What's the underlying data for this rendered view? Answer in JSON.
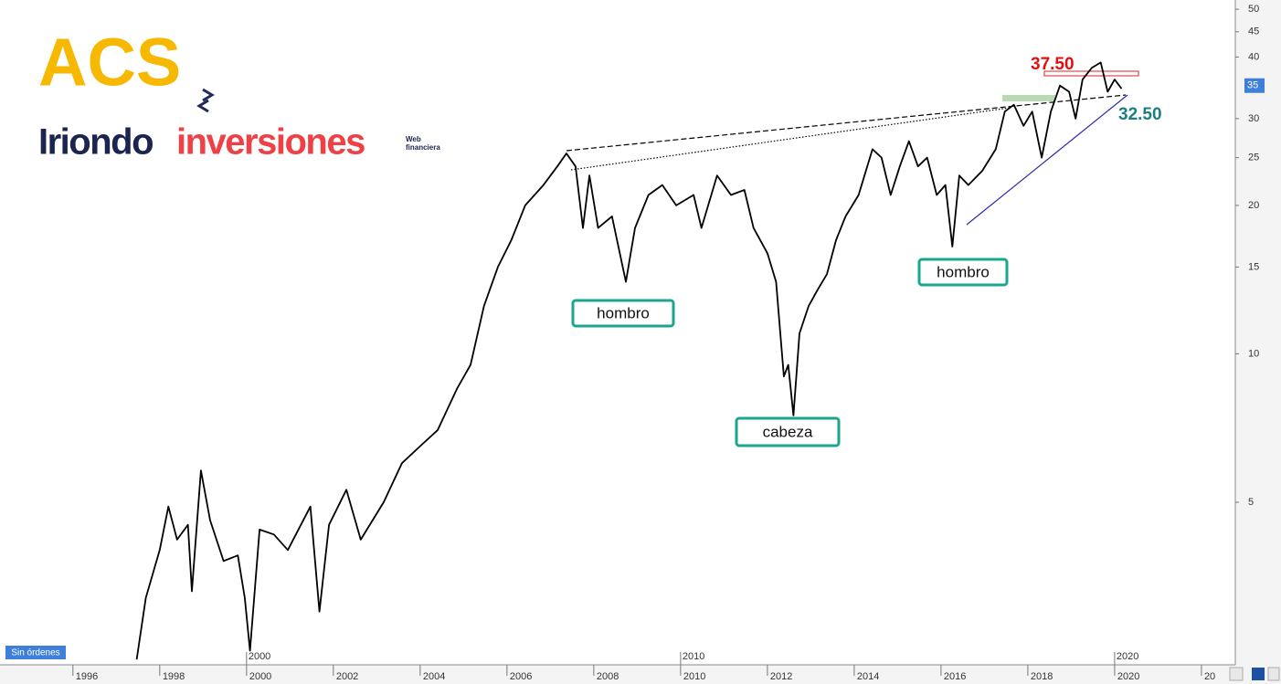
{
  "chart_data": {
    "type": "line",
    "logo": {
      "brand": "ACS",
      "name_a": "Iriondo",
      "name_b": "inversiones",
      "tag_a": "Web",
      "tag_b": "financiera"
    },
    "status": "Sin órdenes",
    "log_y": true,
    "xlim": [
      1994.32,
      2022.78
    ],
    "ylim": [
      2.34,
      52.2
    ],
    "xticks": [
      1996,
      1998,
      2000,
      2002,
      2004,
      2006,
      2008,
      2010,
      2012,
      2014,
      2016,
      2018,
      2020,
      {
        "value": 2022,
        "label": "20"
      }
    ],
    "major_xticks": [
      2000,
      2010,
      2020
    ],
    "yticks": [
      5,
      10,
      15,
      20,
      25,
      30,
      40,
      45,
      50
    ],
    "last_price": 35,
    "series": [
      {
        "name": "ACS",
        "color": "#000000",
        "x": [
          1997.47,
          1997.68,
          1998.0,
          1998.2,
          1998.4,
          1998.65,
          1998.74,
          1998.95,
          1999.16,
          1999.47,
          1999.8,
          1999.96,
          2000.08,
          2000.3,
          2000.63,
          2000.95,
          2001.47,
          2001.68,
          2001.9,
          2002.3,
          2002.63,
          2003.16,
          2003.58,
          2004.0,
          2004.4,
          2004.85,
          2005.16,
          2005.47,
          2005.79,
          2006.1,
          2006.42,
          2006.84,
          2007.16,
          2007.37,
          2007.58,
          2007.75,
          2007.9,
          2008.1,
          2008.42,
          2008.74,
          2008.95,
          2009.26,
          2009.58,
          2009.9,
          2010.3,
          2010.48,
          2010.84,
          2011.16,
          2011.47,
          2011.68,
          2012.0,
          2012.2,
          2012.38,
          2012.48,
          2012.6,
          2012.74,
          2012.95,
          2013.16,
          2013.37,
          2013.58,
          2013.8,
          2014.1,
          2014.42,
          2014.63,
          2014.84,
          2015.05,
          2015.26,
          2015.47,
          2015.68,
          2015.9,
          2016.1,
          2016.26,
          2016.42,
          2016.63,
          2016.95,
          2017.26,
          2017.47,
          2017.68,
          2017.9,
          2018.1,
          2018.32,
          2018.53,
          2018.74,
          2018.95,
          2019.1,
          2019.26,
          2019.47,
          2019.68,
          2019.84,
          2020.0,
          2020.16
        ],
        "values": [
          2.4,
          3.2,
          4.0,
          4.9,
          4.2,
          4.5,
          3.3,
          5.8,
          4.6,
          3.8,
          3.9,
          3.2,
          2.5,
          4.4,
          4.3,
          4.0,
          4.9,
          3.0,
          4.5,
          5.3,
          4.2,
          5.0,
          6.0,
          6.5,
          7.0,
          8.5,
          9.5,
          12.5,
          15,
          17,
          20,
          22,
          24,
          25.5,
          24,
          18,
          23,
          18,
          19,
          14,
          18,
          21,
          22,
          20,
          21,
          18,
          23,
          21,
          21.5,
          18,
          16,
          14,
          9,
          9.5,
          7.5,
          11,
          12.5,
          13.5,
          14.5,
          17,
          19,
          21,
          26,
          25,
          21,
          24,
          27,
          24,
          25,
          21,
          22,
          16.5,
          23,
          22,
          23.5,
          26,
          31,
          32,
          29,
          31,
          25,
          31,
          35,
          34,
          30,
          36,
          38,
          39,
          34,
          36,
          34.5
        ]
      }
    ],
    "annotations": [
      "hombro",
      "cabeza",
      "hombro"
    ],
    "levels": [
      "37.50",
      "32.50"
    ]
  }
}
